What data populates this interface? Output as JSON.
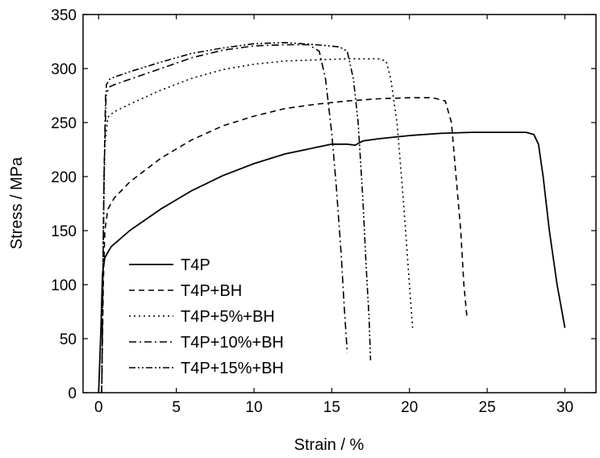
{
  "chart_data": {
    "type": "line",
    "xlabel": "Strain / %",
    "ylabel": "Stress / MPa",
    "xlim": [
      -1,
      32
    ],
    "ylim": [
      0,
      350
    ],
    "x_ticks": [
      "0",
      "5",
      "10",
      "15",
      "20",
      "25",
      "30"
    ],
    "y_ticks": [
      "0",
      "50",
      "100",
      "150",
      "200",
      "250",
      "300",
      "350"
    ],
    "grid": false,
    "legend_position": "lower-left",
    "series": [
      {
        "name": "T4P",
        "dash": "solid",
        "points": [
          [
            0,
            0
          ],
          [
            0.15,
            60
          ],
          [
            0.25,
            110
          ],
          [
            0.4,
            125
          ],
          [
            0.8,
            135
          ],
          [
            2,
            150
          ],
          [
            4,
            170
          ],
          [
            6,
            187
          ],
          [
            8,
            201
          ],
          [
            10,
            212
          ],
          [
            12,
            221
          ],
          [
            14,
            227
          ],
          [
            15,
            230
          ],
          [
            16,
            230
          ],
          [
            16.5,
            229
          ],
          [
            17,
            233
          ],
          [
            18,
            235
          ],
          [
            20,
            238
          ],
          [
            22,
            240
          ],
          [
            24,
            241
          ],
          [
            26,
            241
          ],
          [
            27.5,
            241
          ],
          [
            28,
            239
          ],
          [
            28.3,
            230
          ],
          [
            28.6,
            200
          ],
          [
            29,
            150
          ],
          [
            29.5,
            100
          ],
          [
            30,
            60
          ]
        ]
      },
      {
        "name": "T4P+BH",
        "dash": "dashed",
        "points": [
          [
            0.2,
            0
          ],
          [
            0.3,
            100
          ],
          [
            0.4,
            150
          ],
          [
            0.6,
            170
          ],
          [
            1,
            180
          ],
          [
            2,
            195
          ],
          [
            4,
            217
          ],
          [
            6,
            234
          ],
          [
            8,
            247
          ],
          [
            10,
            256
          ],
          [
            12,
            263
          ],
          [
            14,
            267
          ],
          [
            16,
            270
          ],
          [
            18,
            272
          ],
          [
            20,
            273
          ],
          [
            21.5,
            273
          ],
          [
            22.3,
            270
          ],
          [
            22.7,
            250
          ],
          [
            23,
            200
          ],
          [
            23.3,
            150
          ],
          [
            23.5,
            100
          ],
          [
            23.7,
            70
          ]
        ]
      },
      {
        "name": "T4P+5%+BH",
        "dash": "dotted",
        "points": [
          [
            0.2,
            0
          ],
          [
            0.3,
            150
          ],
          [
            0.4,
            230
          ],
          [
            0.6,
            255
          ],
          [
            1,
            260
          ],
          [
            2,
            267
          ],
          [
            4,
            280
          ],
          [
            6,
            291
          ],
          [
            8,
            299
          ],
          [
            10,
            304
          ],
          [
            12,
            307
          ],
          [
            14,
            308
          ],
          [
            16,
            309
          ],
          [
            18,
            309
          ],
          [
            18.5,
            307
          ],
          [
            18.8,
            290
          ],
          [
            19.2,
            250
          ],
          [
            19.6,
            180
          ],
          [
            20,
            100
          ],
          [
            20.2,
            60
          ]
        ]
      },
      {
        "name": "T4P+10%+BH",
        "dash": "dashdot",
        "points": [
          [
            0.2,
            0
          ],
          [
            0.35,
            200
          ],
          [
            0.45,
            275
          ],
          [
            0.7,
            283
          ],
          [
            1,
            285
          ],
          [
            2,
            290
          ],
          [
            4,
            300
          ],
          [
            6,
            310
          ],
          [
            8,
            317
          ],
          [
            10,
            321
          ],
          [
            12,
            322
          ],
          [
            13.5,
            322
          ],
          [
            14.2,
            316
          ],
          [
            14.6,
            290
          ],
          [
            15,
            240
          ],
          [
            15.3,
            190
          ],
          [
            15.6,
            130
          ],
          [
            15.8,
            80
          ],
          [
            16,
            37
          ]
        ]
      },
      {
        "name": "T4P+15%+BH",
        "dash": "dashdotdot",
        "points": [
          [
            0.2,
            0
          ],
          [
            0.35,
            200
          ],
          [
            0.5,
            285
          ],
          [
            0.7,
            290
          ],
          [
            1,
            292
          ],
          [
            2,
            297
          ],
          [
            4,
            306
          ],
          [
            6,
            314
          ],
          [
            8,
            319
          ],
          [
            10,
            323
          ],
          [
            12,
            324
          ],
          [
            14,
            322
          ],
          [
            15.5,
            320
          ],
          [
            16,
            316
          ],
          [
            16.4,
            290
          ],
          [
            16.7,
            250
          ],
          [
            17,
            180
          ],
          [
            17.2,
            120
          ],
          [
            17.4,
            70
          ],
          [
            17.5,
            30
          ]
        ]
      }
    ]
  }
}
